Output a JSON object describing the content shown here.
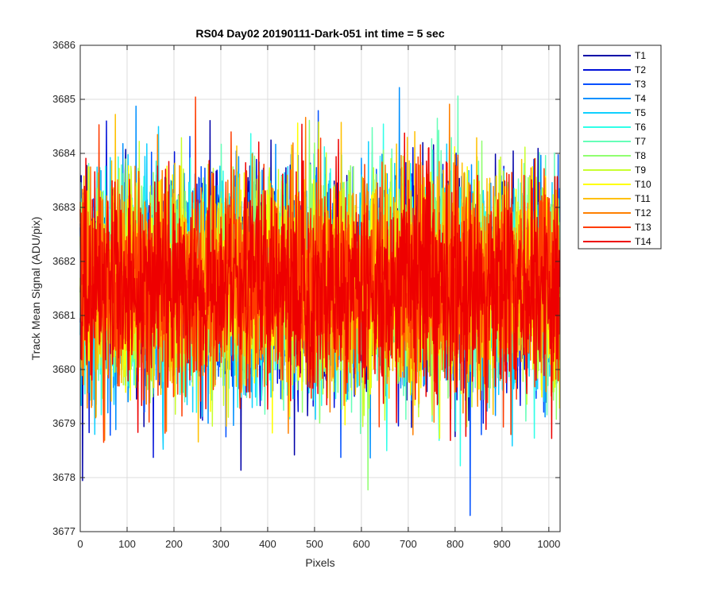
{
  "chart_data": {
    "type": "line",
    "title": "RS04 Day02 20190111-Dark-051 int time = 5 sec",
    "xlabel": "Pixels",
    "ylabel": "Track Mean Signal (ADU/pix)",
    "xlim": [
      0,
      1024
    ],
    "ylim": [
      3677,
      3686
    ],
    "xticks": [
      0,
      100,
      200,
      300,
      400,
      500,
      600,
      700,
      800,
      900,
      1000
    ],
    "yticks": [
      3677,
      3678,
      3679,
      3680,
      3681,
      3682,
      3683,
      3684,
      3685,
      3686
    ],
    "grid": true,
    "legend_position": "outside-top-right",
    "n_points": 1024,
    "signal_mean": 3681.6,
    "signal_std": 0.95,
    "series": [
      {
        "name": "T1",
        "color": "#0000a8"
      },
      {
        "name": "T2",
        "color": "#0010d9"
      },
      {
        "name": "T3",
        "color": "#0050ff"
      },
      {
        "name": "T4",
        "color": "#0090ff"
      },
      {
        "name": "T5",
        "color": "#10d0ff"
      },
      {
        "name": "T6",
        "color": "#30ffe8"
      },
      {
        "name": "T7",
        "color": "#66ffb8"
      },
      {
        "name": "T8",
        "color": "#90ff70"
      },
      {
        "name": "T9",
        "color": "#c8ff30"
      },
      {
        "name": "T10",
        "color": "#ffff00"
      },
      {
        "name": "T11",
        "color": "#ffc000"
      },
      {
        "name": "T12",
        "color": "#ff8000"
      },
      {
        "name": "T13",
        "color": "#ff3c00"
      },
      {
        "name": "T14",
        "color": "#ee0000"
      }
    ]
  }
}
